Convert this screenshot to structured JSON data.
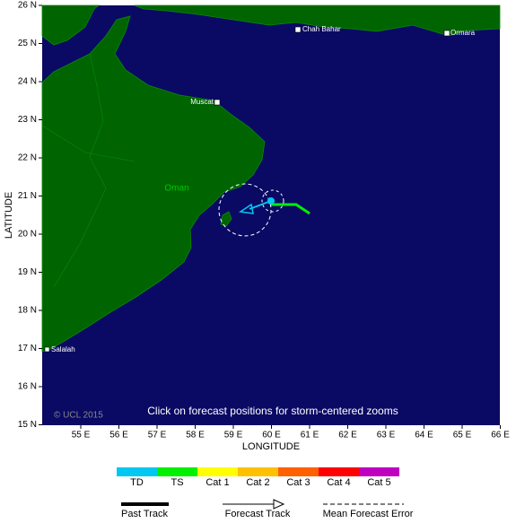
{
  "map": {
    "x_axis_label": "LONGITUDE",
    "y_axis_label": "LATITUDE",
    "lat_ticks": [
      "26 N",
      "25 N",
      "24 N",
      "23 N",
      "22 N",
      "21 N",
      "20 N",
      "19 N",
      "18 N",
      "17 N",
      "16 N",
      "15 N"
    ],
    "lon_ticks": [
      "55 E",
      "56 E",
      "57 E",
      "58 E",
      "59 E",
      "60 E",
      "61 E",
      "62 E",
      "63 E",
      "64 E",
      "65 E",
      "66 E"
    ],
    "places": {
      "chah_bahar": "Chah Bahar",
      "ormara": "Ormara",
      "muscat": "Muscat",
      "salalah": "Salalah",
      "country": "Oman"
    },
    "copyright": "© UCL 2015",
    "note": "Click on forecast positions for storm-centered zooms"
  },
  "legend": {
    "categories": [
      {
        "name": "TD",
        "color": "#00c8f0"
      },
      {
        "name": "TS",
        "color": "#00f000"
      },
      {
        "name": "Cat 1",
        "color": "#ffff00"
      },
      {
        "name": "Cat 2",
        "color": "#ffc000"
      },
      {
        "name": "Cat 3",
        "color": "#ff6000"
      },
      {
        "name": "Cat 4",
        "color": "#ff0000"
      },
      {
        "name": "Cat 5",
        "color": "#c000c0"
      }
    ],
    "lines": [
      "Past Track",
      "Forecast Track",
      "Mean Forecast Error"
    ]
  }
}
